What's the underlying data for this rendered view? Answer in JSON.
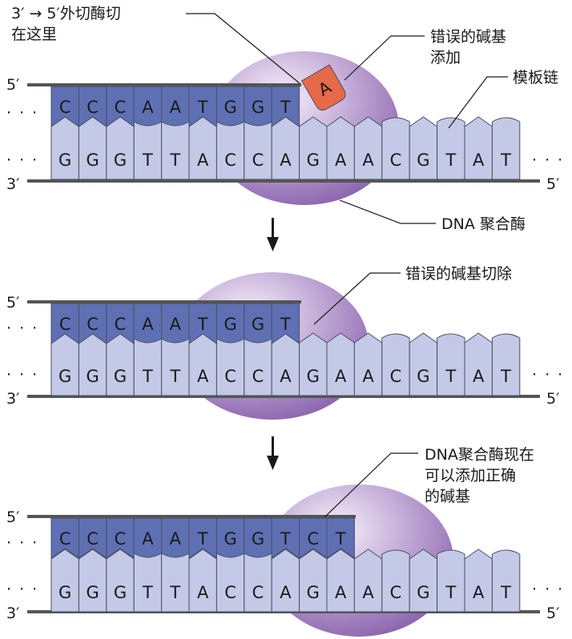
{
  "colors": {
    "template_fill": "#c3c9e6",
    "new_strand_fill": "#5e70b3",
    "outline": "#4a4e63",
    "backbone": "#555555",
    "enzyme": "#9a76b8",
    "mismatch": "#e66a4a"
  },
  "panels": [
    {
      "id": "panel-1",
      "top_bases": [
        "C",
        "C",
        "C",
        "A",
        "A",
        "T",
        "G",
        "G",
        "T"
      ],
      "bottom_bases": [
        "G",
        "G",
        "G",
        "T",
        "T",
        "A",
        "C",
        "C",
        "A",
        "G",
        "A",
        "A",
        "C",
        "G",
        "T",
        "A",
        "T"
      ],
      "mismatch_base": "A",
      "labels": {
        "exo_line1": "3′ → 5′外切酶切",
        "exo_line2": "在这里",
        "wrong_line1": "错误的碱基",
        "wrong_line2": "添加",
        "template": "模板链",
        "polymerase": "DNA 聚合酶"
      }
    },
    {
      "id": "panel-2",
      "top_bases": [
        "C",
        "C",
        "C",
        "A",
        "A",
        "T",
        "G",
        "G",
        "T"
      ],
      "bottom_bases": [
        "G",
        "G",
        "G",
        "T",
        "T",
        "A",
        "C",
        "C",
        "A",
        "G",
        "A",
        "A",
        "C",
        "G",
        "T",
        "A",
        "T"
      ],
      "labels": {
        "excised": "错误的碱基切除"
      }
    },
    {
      "id": "panel-3",
      "top_bases": [
        "C",
        "C",
        "C",
        "A",
        "A",
        "T",
        "G",
        "G",
        "T",
        "C",
        "T"
      ],
      "bottom_bases": [
        "G",
        "G",
        "G",
        "T",
        "T",
        "A",
        "C",
        "C",
        "A",
        "G",
        "A",
        "A",
        "C",
        "G",
        "T",
        "A",
        "T"
      ],
      "labels": {
        "line1": "DNA聚合酶现在",
        "line2": "可以添加正确",
        "line3": "的碱基"
      }
    }
  ],
  "ends": {
    "five_prime": "5′",
    "three_prime": "3′",
    "ellipsis": "· · ·"
  }
}
